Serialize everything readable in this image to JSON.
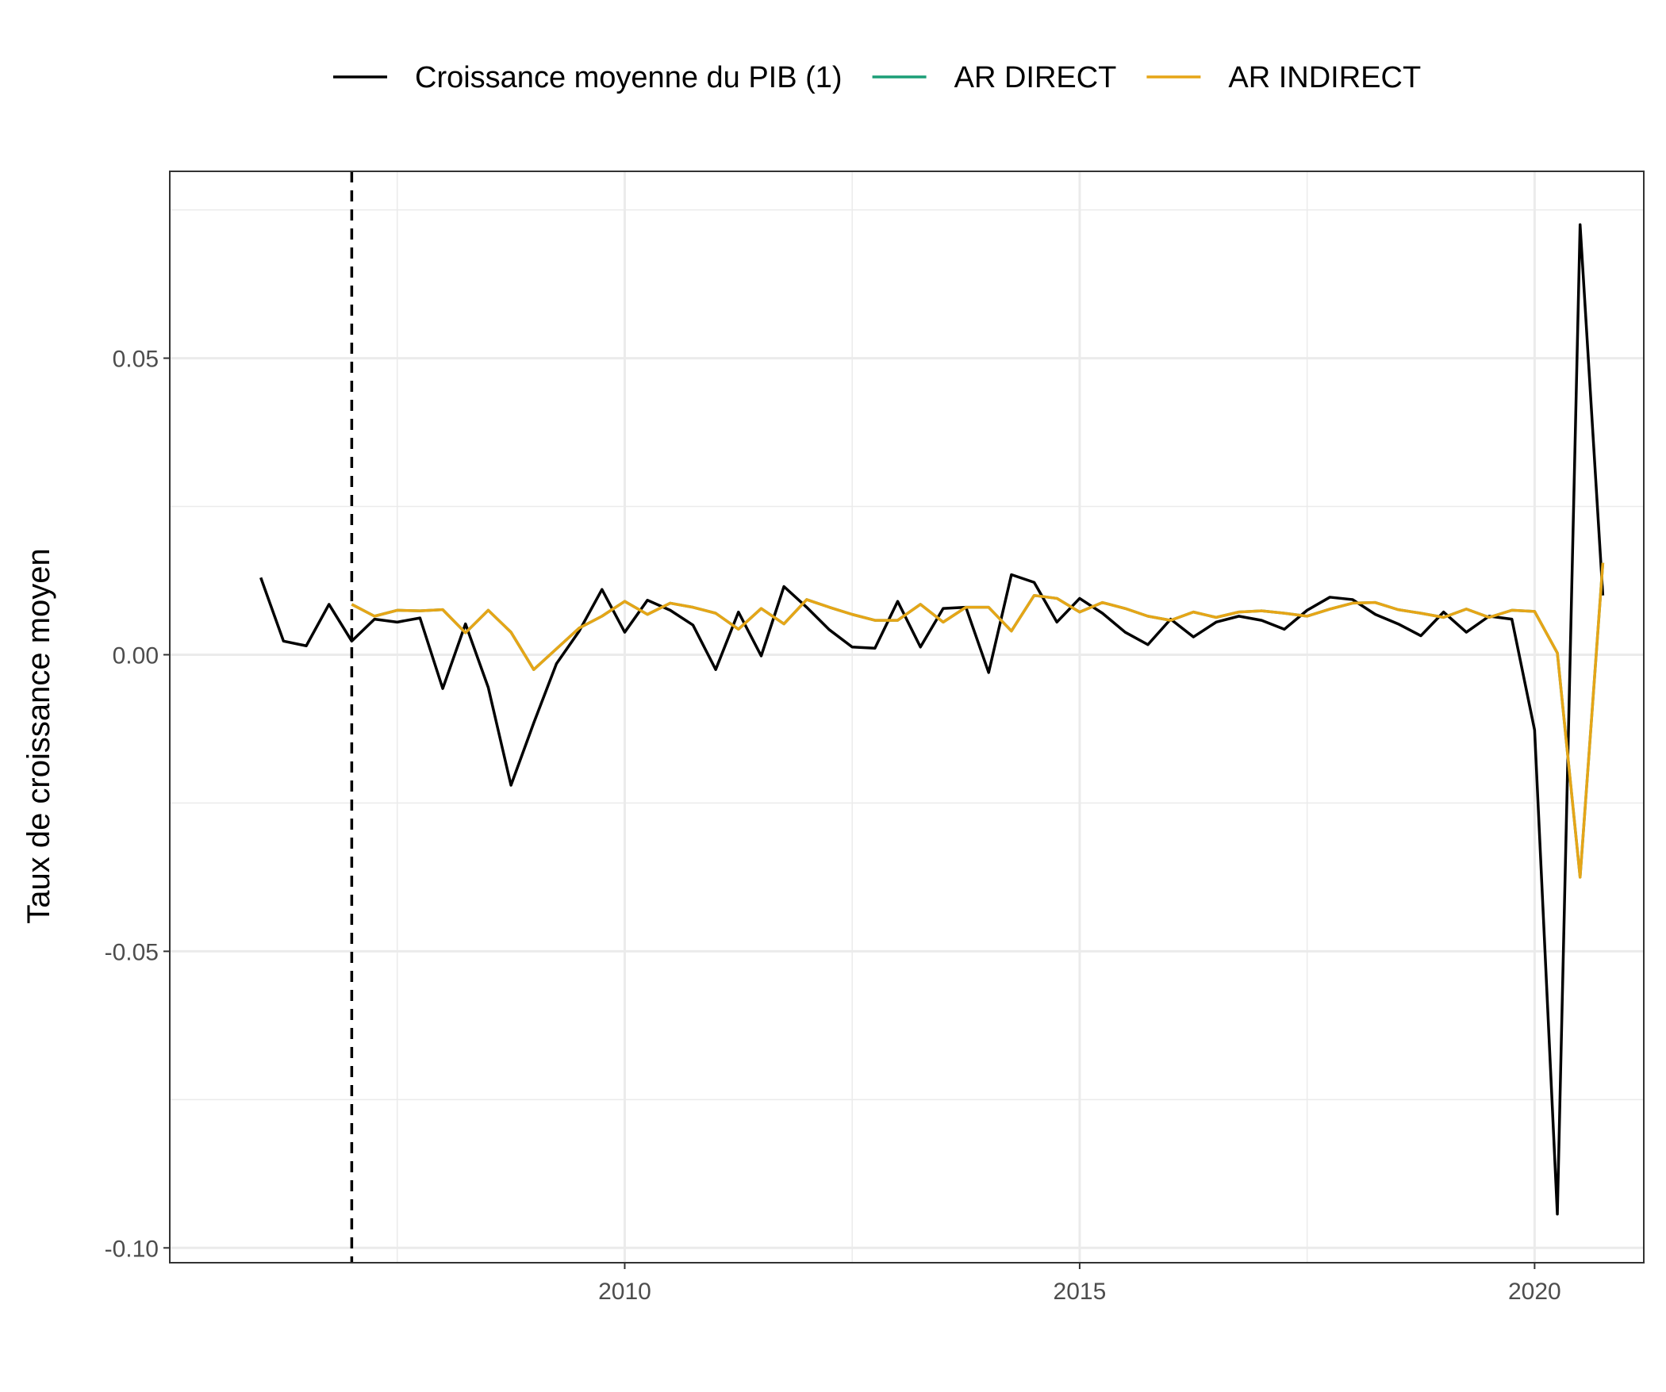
{
  "chart_data": {
    "type": "line",
    "title": "",
    "xlabel": "",
    "ylabel": "Taux de croissance moyen",
    "xlim": [
      2005.0,
      2021.2
    ],
    "ylim": [
      -0.1025,
      0.0815
    ],
    "x_ticks": [
      2010,
      2015,
      2020
    ],
    "x_tick_labels": [
      "2010",
      "2015",
      "2020"
    ],
    "y_ticks": [
      -0.1,
      -0.05,
      0.0,
      0.05
    ],
    "y_tick_labels": [
      "-0.10",
      "-0.05",
      "0.00",
      "0.05"
    ],
    "grid": true,
    "legend_position": "top",
    "vline": {
      "x": 2007.0,
      "style": "dashed",
      "color": "#000000"
    },
    "series": [
      {
        "name": "Croissance moyenne du PIB (1)",
        "color": "#000000",
        "x": [
          2006.0,
          2006.25,
          2006.5,
          2006.75,
          2007.0,
          2007.25,
          2007.5,
          2007.75,
          2008.0,
          2008.25,
          2008.5,
          2008.75,
          2009.0,
          2009.25,
          2009.5,
          2009.75,
          2010.0,
          2010.25,
          2010.5,
          2010.75,
          2011.0,
          2011.25,
          2011.5,
          2011.75,
          2012.0,
          2012.25,
          2012.5,
          2012.75,
          2013.0,
          2013.25,
          2013.5,
          2013.75,
          2014.0,
          2014.25,
          2014.5,
          2014.75,
          2015.0,
          2015.25,
          2015.5,
          2015.75,
          2016.0,
          2016.25,
          2016.5,
          2016.75,
          2017.0,
          2017.25,
          2017.5,
          2017.75,
          2018.0,
          2018.25,
          2018.5,
          2018.75,
          2019.0,
          2019.25,
          2019.5,
          2019.75,
          2020.0,
          2020.25,
          2020.5,
          2020.75
        ],
        "values": [
          0.013,
          0.0023,
          0.0015,
          0.0085,
          0.0023,
          0.006,
          0.0055,
          0.0062,
          -0.0057,
          0.0052,
          -0.0055,
          -0.022,
          -0.0115,
          -0.0015,
          0.004,
          0.011,
          0.0038,
          0.0092,
          0.0075,
          0.005,
          -0.0025,
          0.0072,
          -0.0002,
          0.0115,
          0.008,
          0.0042,
          0.0013,
          0.0011,
          0.009,
          0.0013,
          0.0078,
          0.008,
          -0.003,
          0.0135,
          0.0122,
          0.0055,
          0.0095,
          0.007,
          0.0038,
          0.0017,
          0.006,
          0.003,
          0.0055,
          0.0065,
          0.0058,
          0.0043,
          0.0075,
          0.0097,
          0.0093,
          0.0068,
          0.0052,
          0.0032,
          0.0072,
          0.0038,
          0.0065,
          0.006,
          -0.0127,
          -0.0943,
          0.0725,
          0.01
        ]
      },
      {
        "name": "AR DIRECT",
        "color": "#1b9e77",
        "x": [
          2007.0,
          2007.25,
          2007.5,
          2007.75,
          2008.0,
          2008.25,
          2008.5,
          2008.75,
          2009.0,
          2009.25,
          2009.5,
          2009.75,
          2010.0,
          2010.25,
          2010.5,
          2010.75,
          2011.0,
          2011.25,
          2011.5,
          2011.75,
          2012.0,
          2012.25,
          2012.5,
          2012.75,
          2013.0,
          2013.25,
          2013.5,
          2013.75,
          2014.0,
          2014.25,
          2014.5,
          2014.75,
          2015.0,
          2015.25,
          2015.5,
          2015.75,
          2016.0,
          2016.25,
          2016.5,
          2016.75,
          2017.0,
          2017.25,
          2017.5,
          2017.75,
          2018.0,
          2018.25,
          2018.5,
          2018.75,
          2019.0,
          2019.25,
          2019.5,
          2019.75,
          2020.0,
          2020.25,
          2020.5,
          2020.75
        ],
        "values": [
          0.0085,
          0.0065,
          0.0075,
          0.0074,
          0.0076,
          0.0037,
          0.0075,
          0.0038,
          -0.0025,
          0.001,
          0.0045,
          0.0065,
          0.009,
          0.0068,
          0.0087,
          0.008,
          0.007,
          0.0043,
          0.0078,
          0.0052,
          0.0093,
          0.008,
          0.0068,
          0.0058,
          0.0058,
          0.0085,
          0.0055,
          0.008,
          0.008,
          0.004,
          0.01,
          0.0095,
          0.0072,
          0.0088,
          0.0078,
          0.0065,
          0.0058,
          0.0072,
          0.0063,
          0.0072,
          0.0074,
          0.007,
          0.0065,
          0.0077,
          0.0087,
          0.0088,
          0.0076,
          0.007,
          0.0063,
          0.0077,
          0.0063,
          0.0075,
          0.0073,
          0.0003,
          -0.0375,
          0.0155
        ]
      },
      {
        "name": "AR INDIRECT",
        "color": "#e6a517",
        "x": [
          2007.0,
          2007.25,
          2007.5,
          2007.75,
          2008.0,
          2008.25,
          2008.5,
          2008.75,
          2009.0,
          2009.25,
          2009.5,
          2009.75,
          2010.0,
          2010.25,
          2010.5,
          2010.75,
          2011.0,
          2011.25,
          2011.5,
          2011.75,
          2012.0,
          2012.25,
          2012.5,
          2012.75,
          2013.0,
          2013.25,
          2013.5,
          2013.75,
          2014.0,
          2014.25,
          2014.5,
          2014.75,
          2015.0,
          2015.25,
          2015.5,
          2015.75,
          2016.0,
          2016.25,
          2016.5,
          2016.75,
          2017.0,
          2017.25,
          2017.5,
          2017.75,
          2018.0,
          2018.25,
          2018.5,
          2018.75,
          2019.0,
          2019.25,
          2019.5,
          2019.75,
          2020.0,
          2020.25,
          2020.5,
          2020.75
        ],
        "values": [
          0.0085,
          0.0065,
          0.0075,
          0.0074,
          0.0076,
          0.0037,
          0.0075,
          0.0038,
          -0.0025,
          0.001,
          0.0045,
          0.0065,
          0.009,
          0.0068,
          0.0087,
          0.008,
          0.007,
          0.0043,
          0.0078,
          0.0052,
          0.0093,
          0.008,
          0.0068,
          0.0058,
          0.0058,
          0.0085,
          0.0055,
          0.008,
          0.008,
          0.004,
          0.01,
          0.0095,
          0.0072,
          0.0088,
          0.0078,
          0.0065,
          0.0058,
          0.0072,
          0.0063,
          0.0072,
          0.0074,
          0.007,
          0.0065,
          0.0077,
          0.0087,
          0.0088,
          0.0076,
          0.007,
          0.0063,
          0.0077,
          0.0063,
          0.0075,
          0.0073,
          0.0003,
          -0.0375,
          0.0155
        ]
      }
    ]
  }
}
